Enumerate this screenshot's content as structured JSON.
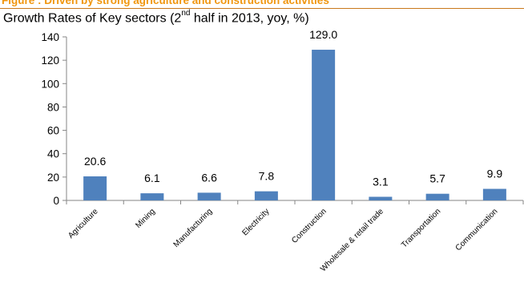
{
  "header": {
    "caption": "Figure : Driven by strong agriculture and construction activities",
    "rule_color": "#c9781a",
    "caption_color": "#f0960f"
  },
  "chart_data": {
    "type": "bar",
    "title_main": "Growth Rates of Key sectors (2",
    "title_sup": "nd",
    "title_rest": " half in 2013, yoy, %)",
    "categories": [
      "Agriculture",
      "Mining",
      "Manufacturing",
      "Electricity",
      "Construction",
      "Wholesale & retail trade",
      "Transportation",
      "Communication"
    ],
    "values": [
      20.6,
      6.1,
      6.6,
      7.8,
      129.0,
      3.1,
      5.7,
      9.9
    ],
    "value_labels": [
      "20.6",
      "6.1",
      "6.6",
      "7.8",
      "129.0",
      "3.1",
      "5.7",
      "9.9"
    ],
    "ylim": [
      0,
      140
    ],
    "yticks": [
      0,
      20,
      40,
      60,
      80,
      100,
      120,
      140
    ],
    "bar_color": "#4f81bd",
    "grid": false,
    "legend": "none"
  }
}
